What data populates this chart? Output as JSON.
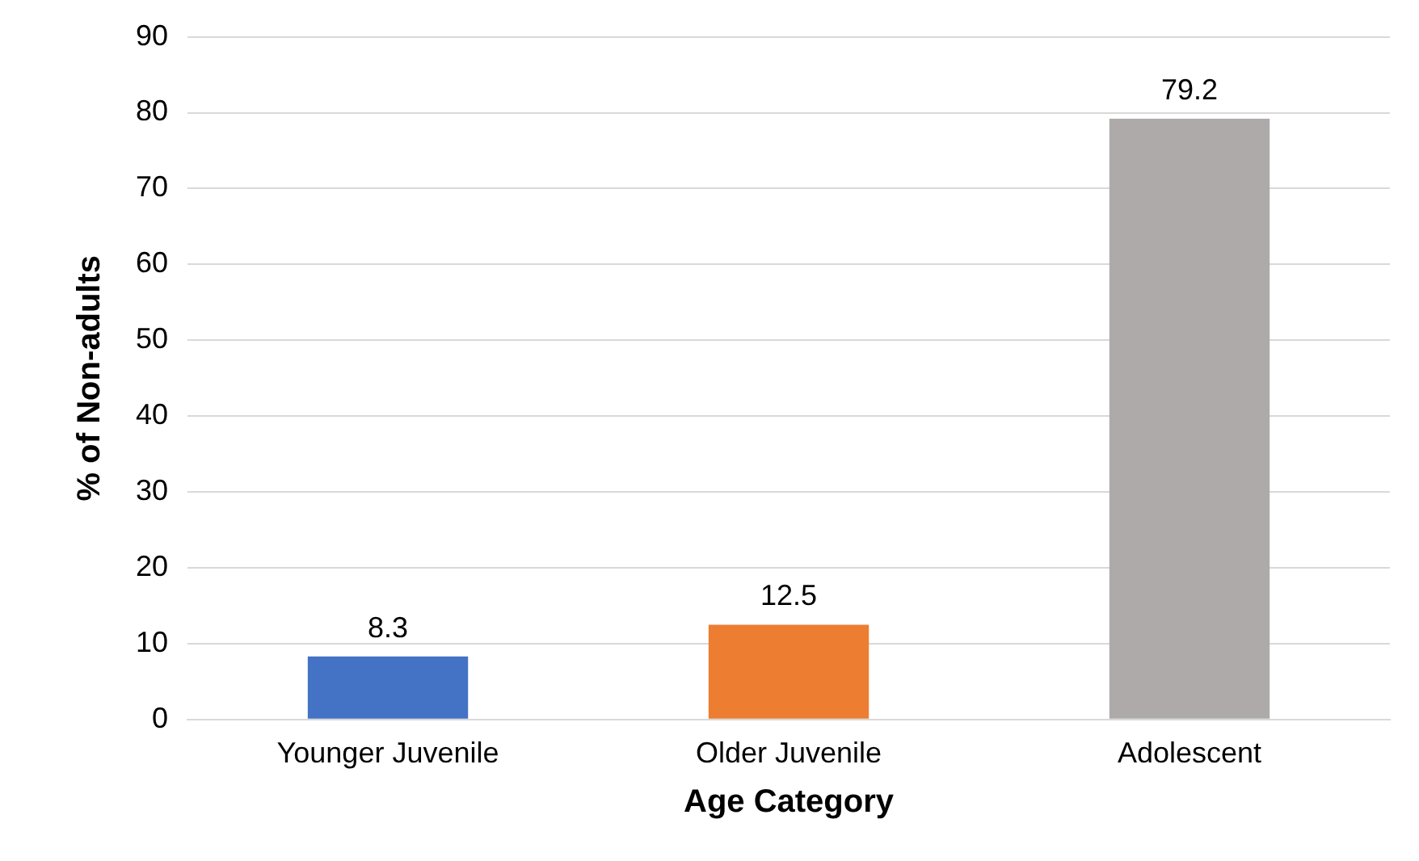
{
  "chart_data": {
    "type": "bar",
    "xlabel": "Age Category",
    "ylabel": "% of Non-adults",
    "categories": [
      "Younger Juvenile",
      "Older Juvenile",
      "Adolescent"
    ],
    "values": [
      8.3,
      12.5,
      79.2
    ],
    "colors": [
      "#4472c4",
      "#ed7d31",
      "#aeaaaa"
    ],
    "ylim": [
      0,
      90
    ],
    "yticks": [
      0,
      10,
      20,
      30,
      40,
      50,
      60,
      70,
      80,
      90
    ],
    "grid": "y",
    "data_labels": true,
    "legend": false
  }
}
